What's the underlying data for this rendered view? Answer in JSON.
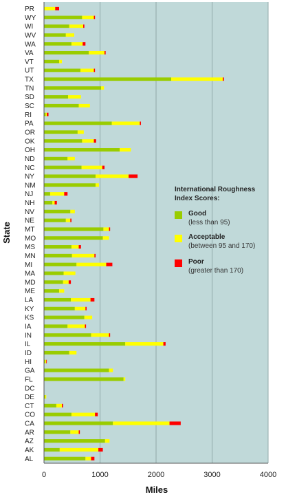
{
  "chart_data": {
    "type": "bar",
    "orientation": "horizontal",
    "stacked": true,
    "xlabel": "Miles",
    "ylabel": "State",
    "xlim": [
      0,
      4000
    ],
    "xticks": [
      "0",
      "1000",
      "2000",
      "3000",
      "4000"
    ],
    "grid": true,
    "background_color": "#c0d9d9",
    "legend": {
      "title": "International Roughness Index Scores:",
      "placement": "right",
      "items": [
        {
          "name": "Good",
          "desc": "(less than 95)",
          "color": "#99cc00"
        },
        {
          "name": "Acceptable",
          "desc": "(between 95 and 170)",
          "color": "#ffff00"
        },
        {
          "name": "Poor",
          "desc": "(greater than 170)",
          "color": "#ff0000"
        }
      ]
    },
    "categories": [
      "PR",
      "WY",
      "WI",
      "WV",
      "WA",
      "VA",
      "VT",
      "UT",
      "TX",
      "TN",
      "SD",
      "SC",
      "RI",
      "PA",
      "OR",
      "OK",
      "OH",
      "ND",
      "NC",
      "NY",
      "NM",
      "NJ",
      "NH",
      "NV",
      "NE",
      "MT",
      "MO",
      "MS",
      "MN",
      "MI",
      "MA",
      "MD",
      "ME",
      "LA",
      "KY",
      "KS",
      "IA",
      "IN",
      "IL",
      "ID",
      "HI",
      "GA",
      "FL",
      "DC",
      "DE",
      "CT",
      "CO",
      "CA",
      "AR",
      "AZ",
      "AK",
      "AL"
    ],
    "series": [
      {
        "name": "Good",
        "color": "#99cc00",
        "values": [
          10,
          680,
          450,
          390,
          490,
          800,
          270,
          650,
          2270,
          1020,
          430,
          620,
          30,
          1210,
          600,
          680,
          1350,
          420,
          670,
          920,
          920,
          110,
          150,
          470,
          390,
          1060,
          1050,
          490,
          500,
          580,
          350,
          340,
          270,
          480,
          550,
          720,
          420,
          840,
          1450,
          450,
          20,
          1160,
          1420,
          0,
          20,
          220,
          490,
          1230,
          470,
          1090,
          280,
          740
        ]
      },
      {
        "name": "Acceptable",
        "color": "#ffff00",
        "values": [
          190,
          210,
          250,
          150,
          200,
          280,
          50,
          240,
          920,
          50,
          230,
          200,
          20,
          500,
          110,
          210,
          200,
          130,
          370,
          590,
          60,
          250,
          40,
          80,
          80,
          100,
          110,
          130,
          400,
          530,
          210,
          100,
          90,
          350,
          190,
          140,
          310,
          320,
          680,
          130,
          20,
          70,
          30,
          0,
          20,
          100,
          420,
          1010,
          150,
          80,
          690,
          100
        ]
      },
      {
        "name": "Poor",
        "color": "#ff0000",
        "values": [
          70,
          20,
          20,
          0,
          50,
          20,
          0,
          20,
          20,
          0,
          0,
          0,
          30,
          20,
          0,
          40,
          0,
          0,
          40,
          160,
          0,
          60,
          40,
          0,
          20,
          20,
          0,
          40,
          20,
          110,
          0,
          40,
          0,
          70,
          20,
          0,
          20,
          20,
          40,
          0,
          10,
          0,
          0,
          0,
          0,
          20,
          50,
          200,
          20,
          0,
          80,
          60
        ]
      }
    ]
  }
}
